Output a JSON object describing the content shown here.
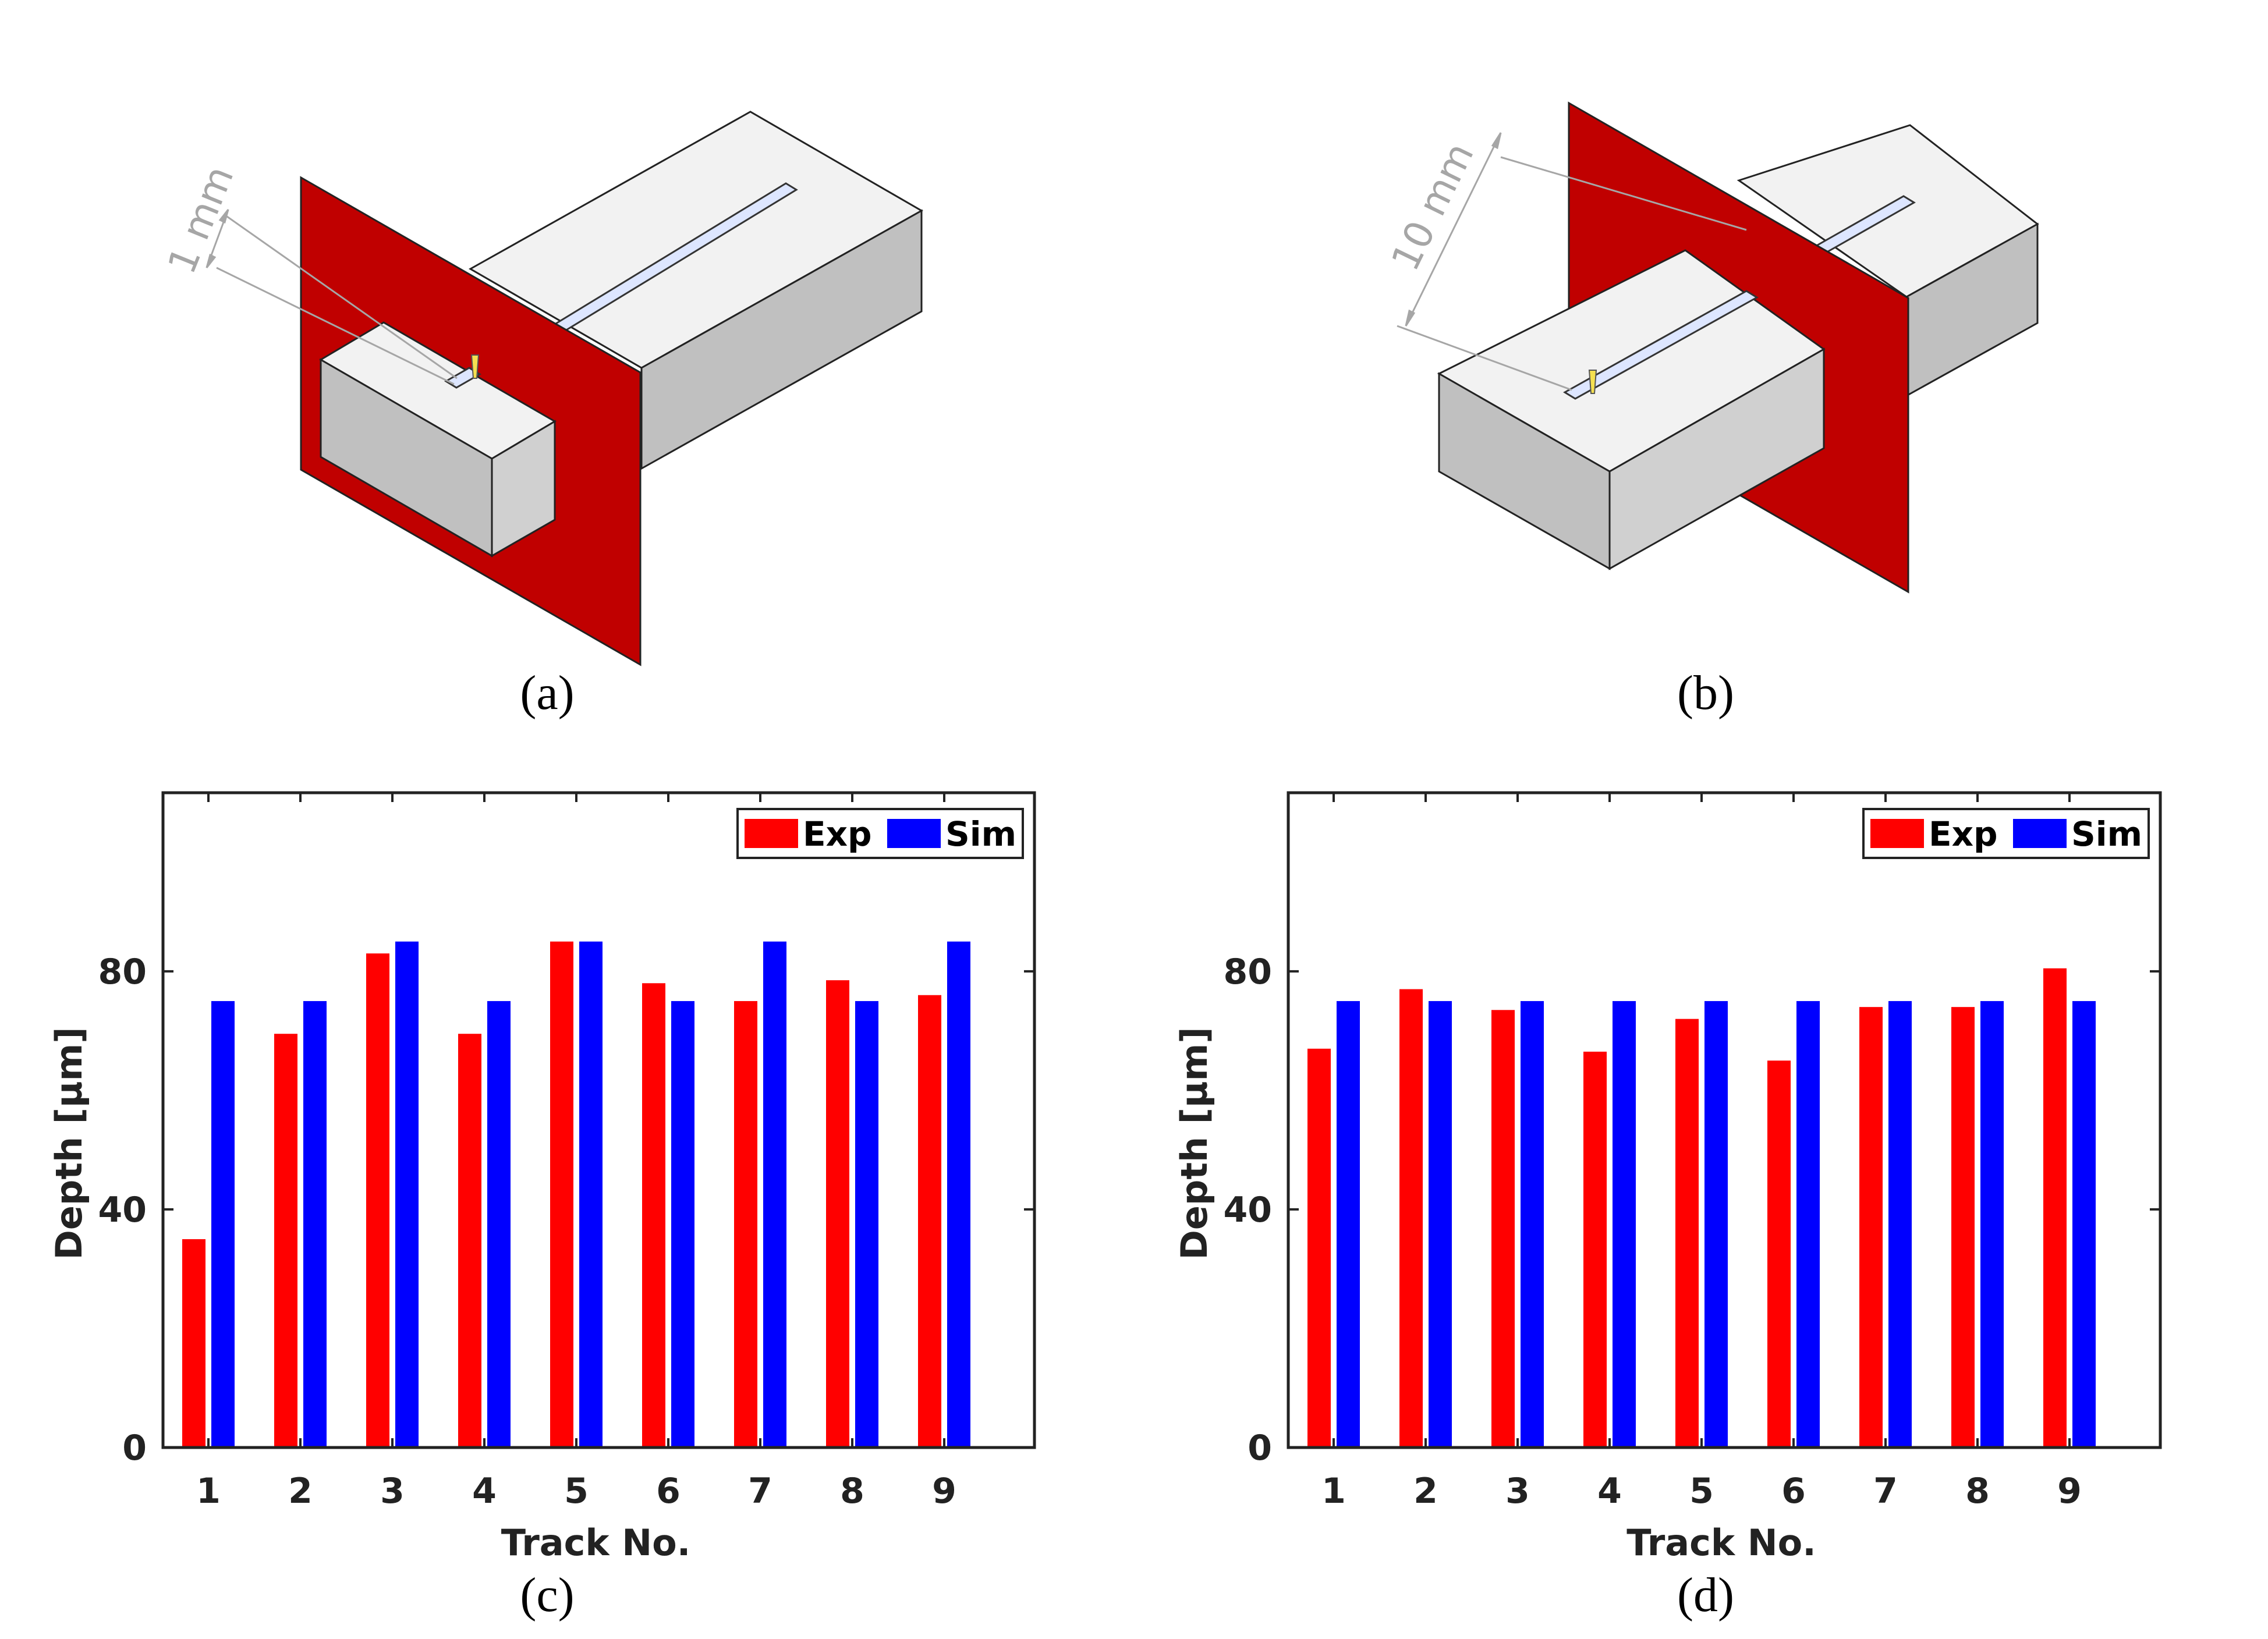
{
  "panels": {
    "a": {
      "label": "(a)",
      "dimension": "1 mm"
    },
    "b": {
      "label": "(b)",
      "dimension": "10 mm"
    },
    "c": {
      "label": "(c)"
    },
    "d": {
      "label": "(d)"
    }
  },
  "colors": {
    "exp": "#ff0000",
    "sim": "#0000ff",
    "plane": "#c00000",
    "block_top": "#f2f2f2",
    "block_side": "#c0c0c0",
    "track": "#dde6ff",
    "nozzle": "#f5e050"
  },
  "chart_data": [
    {
      "type": "bar",
      "panel": "c",
      "categories": [
        "1",
        "2",
        "3",
        "4",
        "5",
        "6",
        "7",
        "8",
        "9"
      ],
      "series": [
        {
          "name": "Exp",
          "values": [
            35,
            69.5,
            83,
            69.5,
            85,
            78,
            75,
            78.5,
            76
          ]
        },
        {
          "name": "Sim",
          "values": [
            75,
            75,
            85,
            75,
            85,
            75,
            85,
            75,
            85
          ]
        }
      ],
      "xlabel": "Track No.",
      "ylabel": "Depth [µm]",
      "ylim": [
        0,
        110
      ],
      "yticks": [
        "0",
        "40",
        "80"
      ],
      "legend": "top-right",
      "grid": false
    },
    {
      "type": "bar",
      "panel": "d",
      "categories": [
        "1",
        "2",
        "3",
        "4",
        "5",
        "6",
        "7",
        "8",
        "9"
      ],
      "series": [
        {
          "name": "Exp",
          "values": [
            67,
            77,
            73.5,
            66.5,
            72,
            65,
            74,
            74,
            80.5
          ]
        },
        {
          "name": "Sim",
          "values": [
            75,
            75,
            75,
            75,
            75,
            75,
            75,
            75,
            75
          ]
        }
      ],
      "xlabel": "Track No.",
      "ylabel": "Depth [µm]",
      "ylim": [
        0,
        110
      ],
      "yticks": [
        "0",
        "40",
        "80"
      ],
      "legend": "top-right",
      "grid": false
    }
  ]
}
